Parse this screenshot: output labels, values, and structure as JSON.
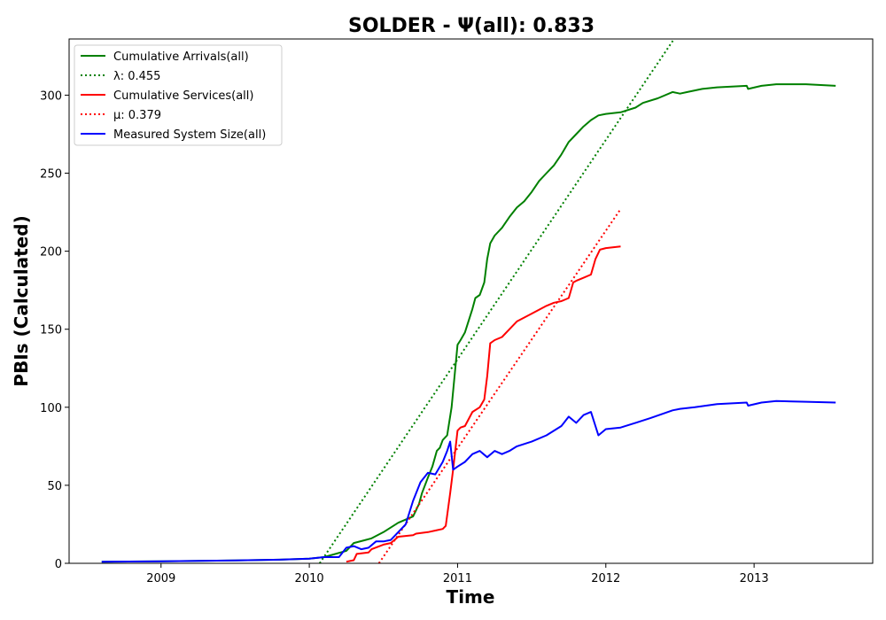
{
  "chart_data": {
    "type": "line",
    "title": "SOLDER -  Ψ(all): 0.833",
    "xlabel": "Time",
    "ylabel": "PBIs (Calculated)",
    "xlim": [
      2008.38,
      2013.8
    ],
    "ylim": [
      0,
      336
    ],
    "x_ticks": [
      2009,
      2010,
      2011,
      2012,
      2013
    ],
    "x_tick_labels": [
      "2009",
      "2010",
      "2011",
      "2012",
      "2013"
    ],
    "y_ticks": [
      0,
      50,
      100,
      150,
      200,
      250,
      300
    ],
    "y_tick_labels": [
      "0",
      "50",
      "100",
      "150",
      "200",
      "250",
      "300"
    ],
    "grid": false,
    "legend_position": "top-left",
    "series": [
      {
        "name": "Cumulative Arrivals(all)",
        "color": "#008000",
        "style": "solid",
        "x": [
          2008.6,
          2009.0,
          2009.5,
          2009.8,
          2010.0,
          2010.1,
          2010.25,
          2010.3,
          2010.38,
          2010.42,
          2010.5,
          2010.6,
          2010.7,
          2010.72,
          2010.74,
          2010.76,
          2010.8,
          2010.83,
          2010.86,
          2010.88,
          2010.9,
          2010.93,
          2010.96,
          2011.0,
          2011.02,
          2011.05,
          2011.1,
          2011.12,
          2011.15,
          2011.18,
          2011.2,
          2011.22,
          2011.25,
          2011.3,
          2011.35,
          2011.4,
          2011.45,
          2011.5,
          2011.55,
          2011.6,
          2011.65,
          2011.7,
          2011.75,
          2011.8,
          2011.85,
          2011.9,
          2011.95,
          2012.0,
          2012.1,
          2012.2,
          2012.25,
          2012.35,
          2012.45,
          2012.5,
          2012.55,
          2012.6,
          2012.65,
          2012.75,
          2012.95,
          2012.96,
          2013.05,
          2013.15,
          2013.35,
          2013.55
        ],
        "y": [
          1,
          1.3,
          1.8,
          2.3,
          3.0,
          4.0,
          8,
          13,
          15,
          16,
          20,
          26,
          30,
          34,
          38,
          45,
          55,
          62,
          72,
          74,
          79,
          82,
          100,
          140,
          143,
          148,
          163,
          170,
          172,
          180,
          195,
          205,
          210,
          215,
          222,
          228,
          232,
          238,
          245,
          250,
          255,
          262,
          270,
          275,
          280,
          284,
          287,
          288,
          289,
          292,
          295,
          298,
          302,
          301,
          302,
          303,
          304,
          305,
          306,
          304,
          306,
          307,
          307,
          306
        ]
      },
      {
        "name": "λ: 0.455",
        "color": "#008000",
        "style": "dotted",
        "x": [
          2010.07,
          2012.46
        ],
        "y": [
          0,
          336
        ]
      },
      {
        "name": "Cumulative Services(all)",
        "color": "#ff0000",
        "style": "solid",
        "x": [
          2010.25,
          2010.3,
          2010.32,
          2010.4,
          2010.42,
          2010.5,
          2010.55,
          2010.6,
          2010.7,
          2010.72,
          2010.8,
          2010.85,
          2010.9,
          2010.92,
          2010.95,
          2010.97,
          2011.0,
          2011.02,
          2011.05,
          2011.1,
          2011.15,
          2011.18,
          2011.2,
          2011.22,
          2011.25,
          2011.3,
          2011.35,
          2011.4,
          2011.5,
          2011.6,
          2011.65,
          2011.7,
          2011.75,
          2011.78,
          2011.8,
          2011.85,
          2011.9,
          2011.93,
          2011.96,
          2012.0,
          2012.1
        ],
        "y": [
          1,
          2,
          6,
          7,
          9,
          12,
          13,
          17,
          18,
          19,
          20,
          21,
          22,
          24,
          45,
          60,
          85,
          87,
          88,
          97,
          100,
          105,
          120,
          141,
          143,
          145,
          150,
          155,
          160,
          165,
          167,
          168,
          170,
          180,
          181,
          183,
          185,
          195,
          201,
          202,
          203
        ]
      },
      {
        "name": "μ: 0.379",
        "color": "#ff0000",
        "style": "dotted",
        "x": [
          2010.47,
          2012.1
        ],
        "y": [
          0,
          227
        ]
      },
      {
        "name": "Measured System Size(all)",
        "color": "#0000ff",
        "style": "solid",
        "x": [
          2008.6,
          2009.0,
          2009.5,
          2009.8,
          2010.0,
          2010.1,
          2010.2,
          2010.25,
          2010.3,
          2010.35,
          2010.4,
          2010.45,
          2010.5,
          2010.55,
          2010.6,
          2010.65,
          2010.7,
          2010.75,
          2010.8,
          2010.85,
          2010.9,
          2010.93,
          2010.95,
          2010.97,
          2011.0,
          2011.05,
          2011.1,
          2011.15,
          2011.2,
          2011.25,
          2011.3,
          2011.35,
          2011.4,
          2011.5,
          2011.6,
          2011.7,
          2011.75,
          2011.8,
          2011.85,
          2011.9,
          2011.95,
          2012.0,
          2012.1,
          2012.2,
          2012.3,
          2012.45,
          2012.5,
          2012.6,
          2012.75,
          2012.95,
          2012.96,
          2013.05,
          2013.15,
          2013.35,
          2013.55
        ],
        "y": [
          1,
          1.3,
          1.8,
          2.3,
          3.0,
          4.0,
          4.0,
          10,
          11,
          9,
          10,
          14,
          14,
          15,
          20,
          25,
          40,
          52,
          58,
          57,
          65,
          72,
          78,
          60,
          62,
          65,
          70,
          72,
          68,
          72,
          70,
          72,
          75,
          78,
          82,
          88,
          94,
          90,
          95,
          97,
          82,
          86,
          87,
          90,
          93,
          98,
          99,
          100,
          102,
          103,
          101,
          103,
          104,
          103.5,
          103
        ]
      }
    ]
  }
}
